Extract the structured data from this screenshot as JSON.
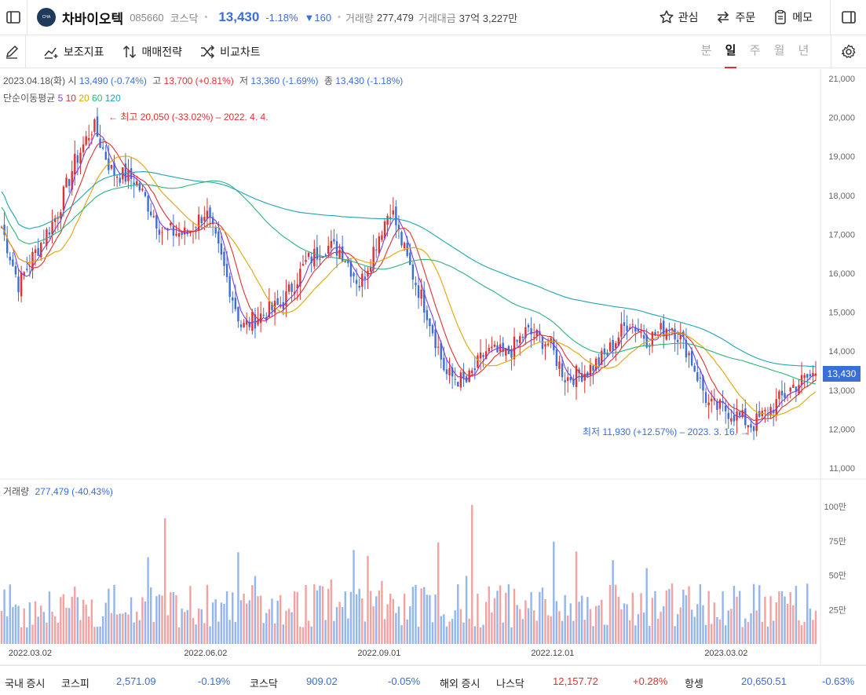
{
  "header": {
    "name": "차바이오텍",
    "code": "085660",
    "market": "코스닥",
    "price": "13,430",
    "change_pct": "-1.18%",
    "change_abs": "▼160",
    "volume_label": "거래량",
    "volume_value": "277,479",
    "amount_label": "거래대금",
    "amount_value": "37억 3,227만",
    "actions": {
      "watch": "관심",
      "order": "주문",
      "memo": "메모"
    }
  },
  "toolbar": {
    "indicator": "보조지표",
    "strategy": "매매전략",
    "compare": "비교차트",
    "periods": [
      "분",
      "일",
      "주",
      "월",
      "년"
    ],
    "active_period": "일"
  },
  "info": {
    "date": "2023.04.18(화)",
    "open_label": "시",
    "open": "13,490 (-0.74%)",
    "high_label": "고",
    "high": "13,700 (+0.81%)",
    "low_label": "저",
    "low": "13,360 (-1.69%)",
    "close_label": "종",
    "close": "13,430 (-1.18%)"
  },
  "ma_legend": {
    "label": "단순이동평균",
    "items": [
      {
        "p": "5",
        "color": "#7b3fe4"
      },
      {
        "p": "10",
        "color": "#e0312f"
      },
      {
        "p": "20",
        "color": "#e2a400"
      },
      {
        "p": "60",
        "color": "#2bb673"
      },
      {
        "p": "120",
        "color": "#1aa6b7"
      }
    ]
  },
  "annotations": {
    "high": "← 최고 20,050 (-33.02%) – 2022. 4. 4.",
    "low": "최저 11,930 (+12.57%) – 2023. 3. 16. →"
  },
  "price_tag": "13,430",
  "volume_legend": {
    "label": "거래량",
    "value": "277,479 (-40.43%)"
  },
  "colors": {
    "up": "#e0312f",
    "down": "#3a6ed8",
    "vol_up": "#f4a1a1",
    "vol_down": "#93b6ee"
  },
  "chart_data": {
    "type": "candlestick",
    "y_ticks": [
      "21,000",
      "20,000",
      "19,000",
      "18,000",
      "17,000",
      "16,000",
      "15,000",
      "14,000",
      "13,000",
      "12,000",
      "11,000"
    ],
    "ylim": [
      11000,
      21000
    ],
    "x_ticks": [
      "2022.03.02",
      "2022.06.02",
      "2022.09.01",
      "2022.12.01",
      "2023.03.02"
    ],
    "vol_ticks": [
      "100만",
      "75만",
      "50만",
      "25만"
    ],
    "vol_ylim": [
      0,
      1200000
    ],
    "close_trend": [
      [
        "2022.02.15",
        17200
      ],
      [
        "2022.02.24",
        15700
      ],
      [
        "2022.03.02",
        16300
      ],
      [
        "2022.03.16",
        17500
      ],
      [
        "2022.03.25",
        18800
      ],
      [
        "2022.04.04",
        19800
      ],
      [
        "2022.04.14",
        18600
      ],
      [
        "2022.04.26",
        18400
      ],
      [
        "2022.05.10",
        17100
      ],
      [
        "2022.05.23",
        17000
      ],
      [
        "2022.06.02",
        17600
      ],
      [
        "2022.06.10",
        16400
      ],
      [
        "2022.06.21",
        14600
      ],
      [
        "2022.06.30",
        14900
      ],
      [
        "2022.07.12",
        15200
      ],
      [
        "2022.07.25",
        16300
      ],
      [
        "2022.08.04",
        16700
      ],
      [
        "2022.08.12",
        16600
      ],
      [
        "2022.08.22",
        15700
      ],
      [
        "2022.09.01",
        17000
      ],
      [
        "2022.09.07",
        17700
      ],
      [
        "2022.09.16",
        16300
      ],
      [
        "2022.09.27",
        14900
      ],
      [
        "2022.10.06",
        13400
      ],
      [
        "2022.10.17",
        13200
      ],
      [
        "2022.10.27",
        14000
      ],
      [
        "2022.11.07",
        13900
      ],
      [
        "2022.11.17",
        14500
      ],
      [
        "2022.11.29",
        14200
      ],
      [
        "2022.12.08",
        13300
      ],
      [
        "2022.12.19",
        13500
      ],
      [
        "2022.12.29",
        13900
      ],
      [
        "2023.01.10",
        14800
      ],
      [
        "2023.01.20",
        14300
      ],
      [
        "2023.02.01",
        14700
      ],
      [
        "2023.02.10",
        14000
      ],
      [
        "2023.02.21",
        12600
      ],
      [
        "2023.03.02",
        12500
      ],
      [
        "2023.03.16",
        12100
      ],
      [
        "2023.03.27",
        12600
      ],
      [
        "2023.04.06",
        13100
      ],
      [
        "2023.04.18",
        13430
      ]
    ]
  },
  "bottom": {
    "domestic": "국내 증시",
    "kospi_label": "코스피",
    "kospi": "2,571.09",
    "kospi_chg": "-0.19%",
    "kosdaq_label": "코스닥",
    "kosdaq": "909.02",
    "kosdaq_chg": "-0.05%",
    "overseas": "해외 증시",
    "nasdaq_label": "나스닥",
    "nasdaq": "12,157.72",
    "nasdaq_chg": "+0.28%",
    "hangseng_label": "항셍",
    "hangseng": "20,650.51",
    "hangseng_chg": "-0.63%"
  }
}
